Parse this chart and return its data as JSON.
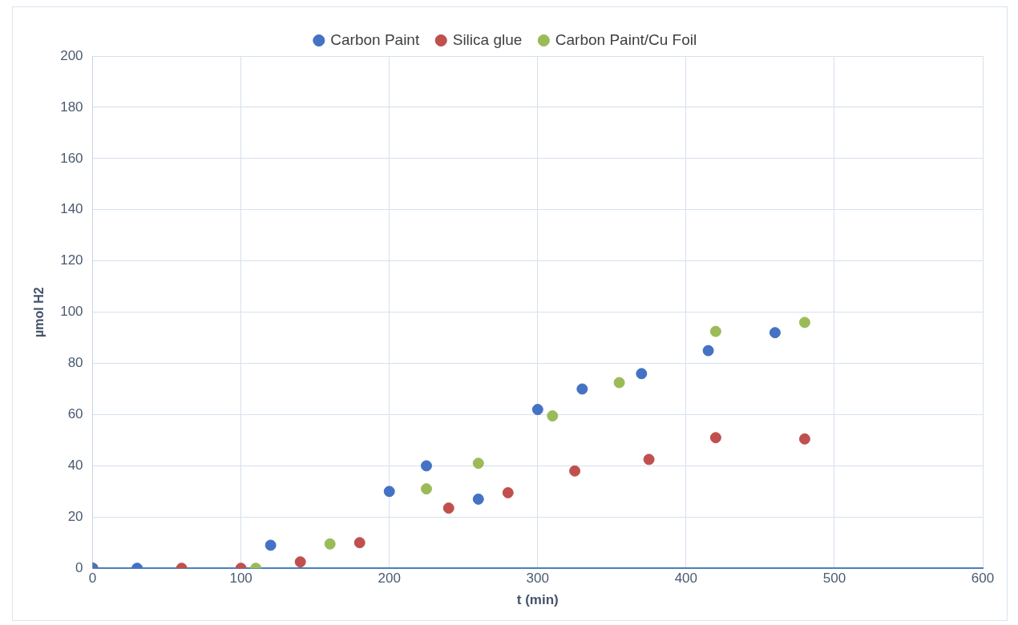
{
  "chart_data": {
    "type": "scatter",
    "xlabel": "t (min)",
    "ylabel": "µmol H2",
    "xlim": [
      0,
      600
    ],
    "xticks": [
      0,
      100,
      200,
      300,
      400,
      500,
      600
    ],
    "ylim": [
      0,
      200
    ],
    "yticks": [
      0,
      20,
      40,
      60,
      80,
      100,
      120,
      140,
      160,
      180,
      200
    ],
    "grid": true,
    "legend": "top",
    "marker": "circle",
    "series": [
      {
        "name": "Carbon Paint",
        "color": "#4472c4",
        "x": [
          0,
          30,
          120,
          200,
          225,
          260,
          300,
          330,
          370,
          415,
          460
        ],
        "values": [
          0,
          0,
          9,
          30,
          40,
          27,
          62,
          70,
          76,
          85,
          92
        ]
      },
      {
        "name": "Silica glue",
        "color": "#c0504d",
        "x": [
          0,
          60,
          100,
          140,
          180,
          240,
          280,
          325,
          375,
          420,
          480
        ],
        "values": [
          0,
          0,
          0,
          2.5,
          10,
          23.5,
          29.5,
          38,
          42.5,
          51,
          50.5
        ]
      },
      {
        "name": "Carbon Paint/Cu Foil",
        "color": "#9bbb59",
        "x": [
          0,
          110,
          160,
          225,
          260,
          310,
          355,
          420,
          480
        ],
        "values": [
          0,
          0,
          9.5,
          31,
          41,
          59.5,
          72.5,
          92.5,
          96
        ]
      }
    ]
  }
}
